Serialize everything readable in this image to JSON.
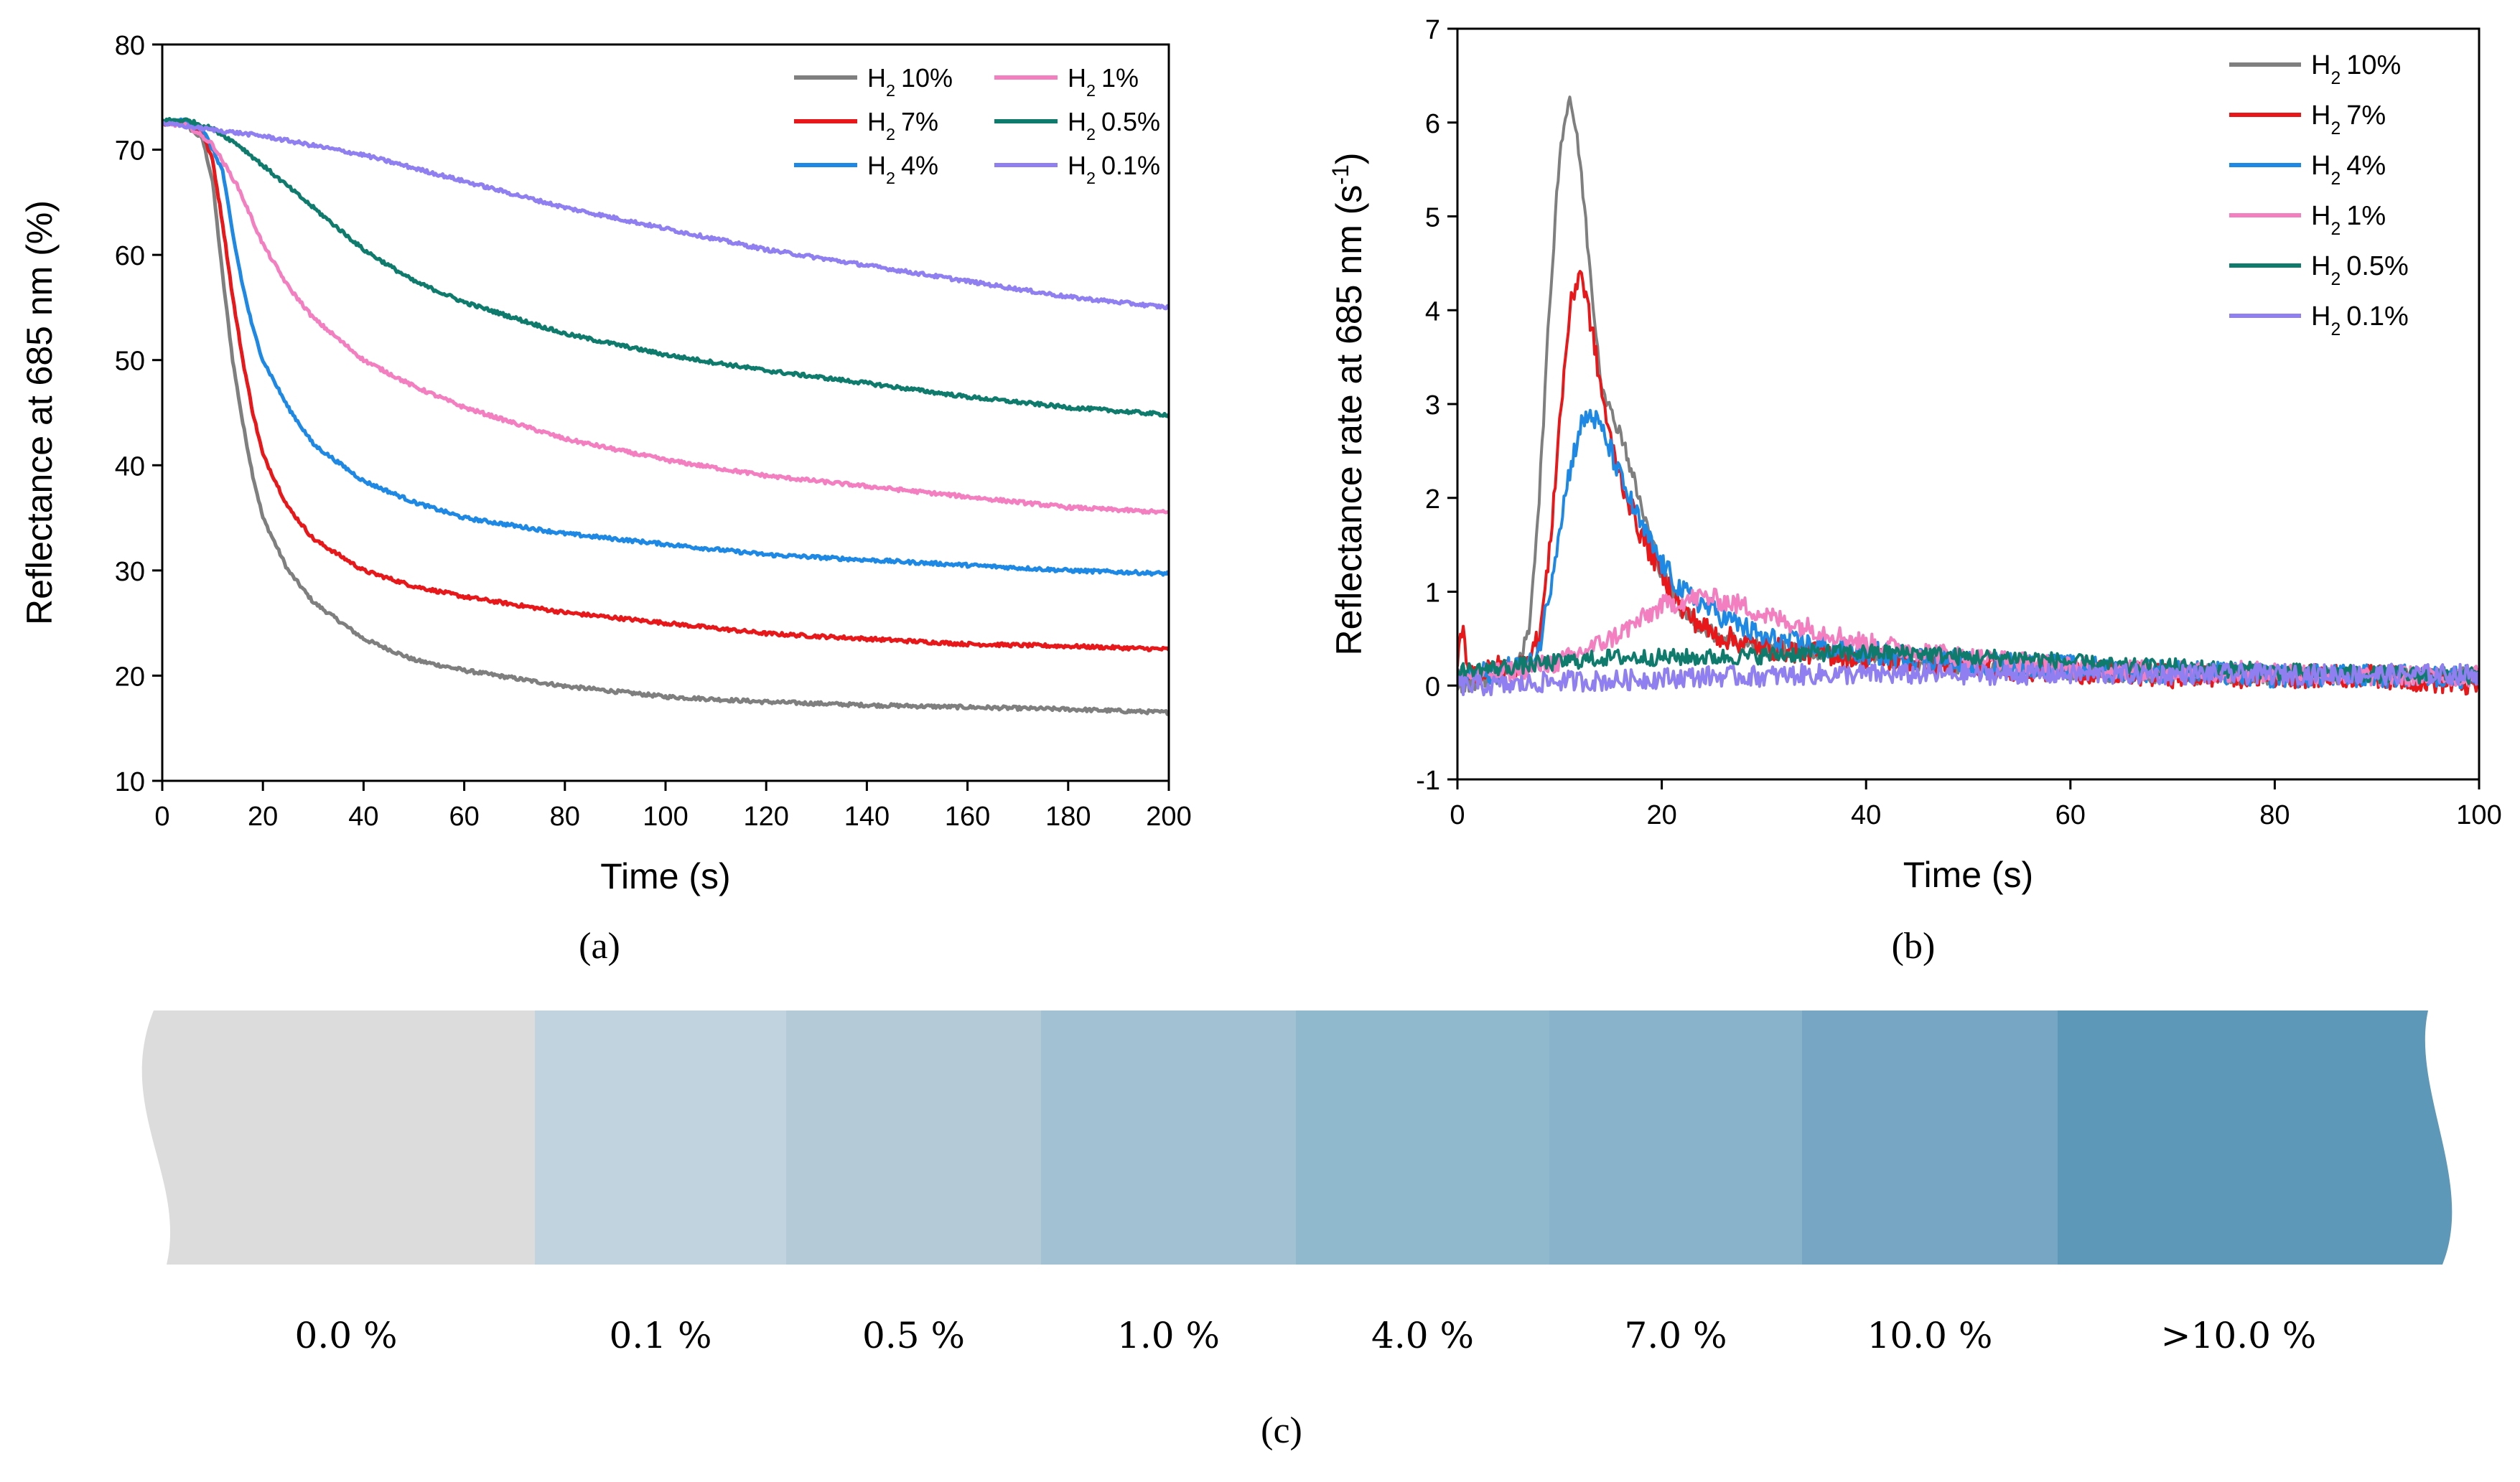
{
  "chart_data": [
    {
      "id": "a",
      "type": "line",
      "panel_label": "(a)",
      "xlabel": "Time (s)",
      "ylabel": "Reflectance at 685 nm (%)",
      "xlim": [
        0,
        200
      ],
      "ylim": [
        10,
        80
      ],
      "xticks": [
        0,
        20,
        40,
        60,
        80,
        100,
        120,
        140,
        160,
        180,
        200
      ],
      "yticks": [
        10,
        20,
        30,
        40,
        50,
        60,
        70,
        80
      ],
      "legend_position": "top-right",
      "series": [
        {
          "name": "H2 10%",
          "sub": "2",
          "pct": "10%",
          "color": "#7f7f7f",
          "x": [
            0,
            4,
            8,
            10,
            12,
            14,
            16,
            18,
            20,
            25,
            30,
            40,
            50,
            60,
            80,
            100,
            120,
            140,
            160,
            180,
            200
          ],
          "y": [
            72.5,
            72.6,
            71.0,
            67.0,
            58.0,
            50.0,
            44.0,
            39.0,
            35.0,
            30.0,
            27.0,
            23.5,
            21.5,
            20.5,
            19.0,
            18.0,
            17.5,
            17.2,
            17.0,
            16.8,
            16.5
          ]
        },
        {
          "name": "H2 7%",
          "sub": "2",
          "pct": "7%",
          "color": "#e8171a",
          "x": [
            0,
            4,
            8,
            10,
            12,
            14,
            16,
            18,
            20,
            25,
            30,
            40,
            50,
            60,
            80,
            100,
            120,
            140,
            160,
            180,
            200
          ],
          "y": [
            72.5,
            72.6,
            71.5,
            69.0,
            63.0,
            56.0,
            50.0,
            45.0,
            41.0,
            36.0,
            33.0,
            30.0,
            28.5,
            27.5,
            26.0,
            25.0,
            24.0,
            23.5,
            23.0,
            22.8,
            22.5
          ]
        },
        {
          "name": "H2 4%",
          "sub": "2",
          "pct": "4%",
          "color": "#1e88e5",
          "x": [
            0,
            4,
            8,
            12,
            14,
            16,
            18,
            20,
            25,
            30,
            40,
            50,
            60,
            80,
            100,
            120,
            140,
            160,
            180,
            200
          ],
          "y": [
            72.5,
            72.8,
            72.0,
            68.0,
            62.0,
            57.0,
            53.0,
            50.0,
            45.5,
            42.0,
            38.5,
            36.5,
            35.0,
            33.5,
            32.5,
            31.5,
            31.0,
            30.5,
            30.0,
            29.7
          ]
        },
        {
          "name": "H2 1%",
          "sub": "2",
          "pct": "1%",
          "color": "#f37fc0",
          "x": [
            0,
            5,
            10,
            15,
            20,
            25,
            30,
            40,
            50,
            60,
            80,
            100,
            120,
            140,
            160,
            180,
            200
          ],
          "y": [
            72.5,
            72.3,
            70.5,
            66.5,
            61.0,
            57.0,
            54.0,
            50.0,
            47.5,
            45.5,
            42.5,
            40.5,
            39.0,
            38.0,
            37.0,
            36.0,
            35.5
          ]
        },
        {
          "name": "H2 0.5%",
          "sub": "2",
          "pct": "0.5%",
          "color": "#0f7b6c",
          "x": [
            0,
            5,
            10,
            15,
            20,
            25,
            30,
            40,
            50,
            60,
            80,
            100,
            120,
            140,
            160,
            180,
            200
          ],
          "y": [
            72.8,
            72.8,
            72.0,
            70.5,
            68.5,
            66.5,
            64.5,
            60.5,
            57.5,
            55.5,
            52.5,
            50.5,
            49.0,
            47.8,
            46.5,
            45.5,
            44.8
          ]
        },
        {
          "name": "H2 0.1%",
          "sub": "2",
          "pct": "0.1%",
          "color": "#8f7ff0",
          "x": [
            0,
            20,
            40,
            60,
            80,
            100,
            120,
            140,
            160,
            180,
            200
          ],
          "y": [
            72.5,
            71.3,
            69.5,
            67.0,
            64.5,
            62.5,
            60.5,
            59.0,
            57.5,
            56.0,
            55.0
          ]
        }
      ]
    },
    {
      "id": "b",
      "type": "line",
      "panel_label": "(b)",
      "xlabel": "Time (s)",
      "ylabel": "Reflectance rate at 685 nm (s",
      "ylabel_sup": "-1",
      "ylabel_end": ")",
      "xlim": [
        0,
        100
      ],
      "ylim": [
        -1,
        7
      ],
      "xticks": [
        0,
        20,
        40,
        60,
        80,
        100
      ],
      "yticks": [
        -1,
        0,
        1,
        2,
        3,
        4,
        5,
        6,
        7
      ],
      "legend_position": "top-right",
      "series": [
        {
          "name": "H2 10%",
          "sub": "2",
          "pct": "10%",
          "color": "#7f7f7f",
          "x": [
            0,
            4,
            6,
            7,
            8,
            9,
            10,
            11,
            12,
            13,
            14,
            15,
            16,
            18,
            20,
            22,
            25,
            30,
            40,
            50,
            60,
            70,
            80,
            90,
            100
          ],
          "y": [
            0.0,
            0.1,
            0.2,
            0.6,
            2.0,
            4.0,
            5.7,
            6.3,
            5.6,
            4.4,
            3.3,
            2.9,
            2.7,
            1.9,
            1.2,
            0.8,
            0.55,
            0.4,
            0.3,
            0.2,
            0.15,
            0.1,
            0.1,
            0.1,
            0.1
          ]
        },
        {
          "name": "H2 7%",
          "sub": "2",
          "pct": "7%",
          "color": "#e8171a",
          "x": [
            0,
            0.5,
            1,
            2,
            4,
            6,
            8,
            9,
            10,
            11,
            12,
            13,
            14,
            15,
            16,
            18,
            20,
            22,
            25,
            30,
            40,
            50,
            60,
            70,
            80,
            90,
            100
          ],
          "y": [
            0.2,
            0.7,
            0.2,
            0.1,
            0.2,
            0.2,
            0.5,
            1.4,
            2.8,
            4.0,
            4.45,
            3.9,
            3.2,
            2.6,
            2.2,
            1.6,
            1.2,
            0.8,
            0.55,
            0.4,
            0.3,
            0.2,
            0.15,
            0.1,
            0.1,
            0.1,
            0.0
          ]
        },
        {
          "name": "H2 4%",
          "sub": "2",
          "pct": "4%",
          "color": "#1e88e5",
          "x": [
            0,
            4,
            6,
            7,
            8,
            9,
            10,
            11,
            12,
            13,
            14,
            15,
            16,
            18,
            20,
            22,
            25,
            30,
            40,
            50,
            60,
            70,
            80,
            90,
            100
          ],
          "y": [
            0.1,
            0.15,
            0.2,
            0.2,
            0.4,
            1.0,
            1.7,
            2.3,
            2.75,
            2.9,
            2.75,
            2.5,
            2.2,
            1.7,
            1.3,
            1.0,
            0.8,
            0.5,
            0.35,
            0.25,
            0.2,
            0.15,
            0.1,
            0.1,
            0.1
          ]
        },
        {
          "name": "H2 1%",
          "sub": "2",
          "pct": "1%",
          "color": "#f37fc0",
          "x": [
            0,
            5,
            10,
            12,
            15,
            18,
            20,
            22,
            24,
            26,
            28,
            30,
            35,
            40,
            50,
            60,
            70,
            80,
            90,
            100
          ],
          "y": [
            0.1,
            0.15,
            0.25,
            0.35,
            0.5,
            0.7,
            0.85,
            0.9,
            0.95,
            0.9,
            0.85,
            0.75,
            0.6,
            0.45,
            0.3,
            0.2,
            0.15,
            0.15,
            0.1,
            0.1
          ]
        },
        {
          "name": "H2 0.5%",
          "sub": "2",
          "pct": "0.5%",
          "color": "#0f7b6c",
          "x": [
            0,
            5,
            10,
            15,
            20,
            25,
            30,
            35,
            40,
            45,
            50,
            55,
            60,
            65,
            70,
            80,
            90,
            100
          ],
          "y": [
            0.15,
            0.2,
            0.25,
            0.3,
            0.3,
            0.3,
            0.32,
            0.35,
            0.35,
            0.35,
            0.3,
            0.3,
            0.25,
            0.2,
            0.2,
            0.15,
            0.12,
            0.1
          ]
        },
        {
          "name": "H2 0.1%",
          "sub": "2",
          "pct": "0.1%",
          "color": "#8f7ff0",
          "x": [
            0,
            5,
            10,
            15,
            20,
            25,
            30,
            35,
            40,
            50,
            60,
            70,
            80,
            90,
            100
          ],
          "y": [
            0.0,
            0.0,
            0.05,
            0.05,
            0.08,
            0.1,
            0.1,
            0.12,
            0.12,
            0.12,
            0.12,
            0.12,
            0.12,
            0.12,
            0.12
          ]
        }
      ]
    },
    {
      "id": "c",
      "type": "color-scale",
      "panel_label": "(c)",
      "categories": [
        "0.0 %",
        "0.1 %",
        "0.5 %",
        "1.0 %",
        "4.0 %",
        "7.0 %",
        "10.0 %",
        ">10.0 %"
      ],
      "colors": [
        "#dcdcdc",
        "#c0d3de",
        "#b4cbd7",
        "#a2c1d3",
        "#91b9cd",
        "#88b3ca",
        "#76a6c3",
        "#5e98b9"
      ]
    }
  ]
}
